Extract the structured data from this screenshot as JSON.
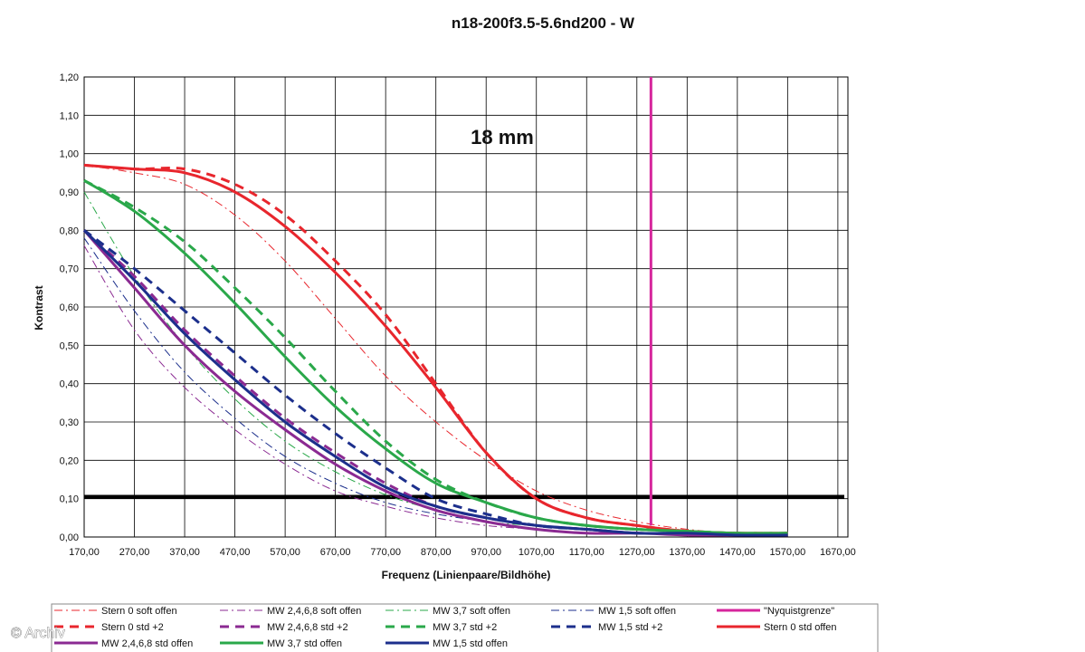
{
  "watermark": "© Archiv",
  "chart_data": {
    "type": "line",
    "title": "n18-200f3.5-5.6nd200 - W",
    "xlabel": "Frequenz (Linienpaare/Bildhöhe)",
    "ylabel": "Kontrast",
    "annotation": "18 mm",
    "xlim": [
      170,
      1690
    ],
    "ylim": [
      0,
      1.2
    ],
    "x_ticks": [
      "170,00",
      "270,00",
      "370,00",
      "470,00",
      "570,00",
      "670,00",
      "770,00",
      "870,00",
      "970,00",
      "1070,00",
      "1170,00",
      "1270,00",
      "1370,00",
      "1470,00",
      "1570,00",
      "1670,00"
    ],
    "y_ticks": [
      "0,00",
      "0,10",
      "0,20",
      "0,30",
      "0,40",
      "0,50",
      "0,60",
      "0,70",
      "0,80",
      "0,90",
      "1,00",
      "1,10",
      "1,20"
    ],
    "threshold": 0.105,
    "nyquist_x": 1298,
    "colors": {
      "red": "#e8262d",
      "purple": "#8b2a92",
      "green": "#2aa84a",
      "blue": "#1c2f8c",
      "magenta": "#d6269c",
      "black": "#000000"
    },
    "series": [
      {
        "name": "Stern 0 soft offen",
        "color": "red",
        "style": "dashdot",
        "width": 1,
        "x": [
          170,
          270,
          370,
          470,
          570,
          670,
          770,
          870,
          970,
          1070,
          1170,
          1270,
          1370,
          1470,
          1570
        ],
        "y": [
          0.97,
          0.95,
          0.92,
          0.84,
          0.72,
          0.57,
          0.42,
          0.3,
          0.2,
          0.12,
          0.07,
          0.04,
          0.02,
          0.01,
          0.01
        ]
      },
      {
        "name": "MW 2,4,6,8 soft offen",
        "color": "purple",
        "style": "dashdot",
        "width": 1,
        "x": [
          170,
          270,
          370,
          470,
          570,
          670,
          770,
          870,
          970,
          1070,
          1170,
          1270,
          1370,
          1470,
          1570
        ],
        "y": [
          0.76,
          0.54,
          0.39,
          0.28,
          0.19,
          0.12,
          0.08,
          0.05,
          0.03,
          0.02,
          0.01,
          0.01,
          0.005,
          0.005,
          0.005
        ]
      },
      {
        "name": "MW 3,7 soft offen",
        "color": "green",
        "style": "dashdot",
        "width": 1,
        "x": [
          170,
          270,
          370,
          470,
          570,
          670,
          770,
          870,
          970,
          1070,
          1170,
          1270,
          1370,
          1470,
          1570
        ],
        "y": [
          0.9,
          0.68,
          0.5,
          0.36,
          0.25,
          0.17,
          0.11,
          0.07,
          0.04,
          0.03,
          0.02,
          0.01,
          0.01,
          0.01,
          0.01
        ]
      },
      {
        "name": "MW 1,5 soft offen",
        "color": "blue",
        "style": "dashdot",
        "width": 1,
        "x": [
          170,
          270,
          370,
          470,
          570,
          670,
          770,
          870,
          970,
          1070,
          1170,
          1270,
          1370,
          1470,
          1570
        ],
        "y": [
          0.78,
          0.59,
          0.43,
          0.31,
          0.21,
          0.14,
          0.09,
          0.06,
          0.04,
          0.02,
          0.01,
          0.01,
          0.005,
          0.005,
          0.005
        ]
      },
      {
        "name": "\"Nyquistgrenze\"",
        "color": "magenta",
        "style": "vline",
        "width": 3
      },
      {
        "name": "Stern 0 std +2",
        "color": "red",
        "style": "dash",
        "width": 3,
        "x": [
          170,
          270,
          370,
          470,
          570,
          670,
          770,
          870,
          970,
          1070,
          1170,
          1270,
          1370,
          1470,
          1570
        ],
        "y": [
          0.97,
          0.96,
          0.96,
          0.92,
          0.84,
          0.72,
          0.58,
          0.4,
          0.22,
          0.1,
          0.05,
          0.03,
          0.015,
          0.01,
          0.01
        ]
      },
      {
        "name": "MW 2,4,6,8 std +2",
        "color": "purple",
        "style": "dash",
        "width": 3,
        "x": [
          170,
          270,
          370,
          470,
          570,
          670,
          770,
          870,
          970,
          1070,
          1170,
          1270,
          1370,
          1470,
          1570
        ],
        "y": [
          0.8,
          0.68,
          0.54,
          0.42,
          0.31,
          0.22,
          0.14,
          0.08,
          0.05,
          0.03,
          0.02,
          0.01,
          0.01,
          0.005,
          0.005
        ]
      },
      {
        "name": "MW 3,7 std +2",
        "color": "green",
        "style": "dash",
        "width": 3,
        "x": [
          170,
          270,
          370,
          470,
          570,
          670,
          770,
          870,
          970,
          1070,
          1170,
          1270,
          1370,
          1470,
          1570
        ],
        "y": [
          0.93,
          0.86,
          0.77,
          0.65,
          0.52,
          0.38,
          0.25,
          0.15,
          0.09,
          0.05,
          0.03,
          0.02,
          0.015,
          0.01,
          0.01
        ]
      },
      {
        "name": "MW 1,5 std +2",
        "color": "blue",
        "style": "dash",
        "width": 3,
        "x": [
          170,
          270,
          370,
          470,
          570,
          670,
          770,
          870,
          970,
          1070,
          1170,
          1270,
          1370,
          1470,
          1570
        ],
        "y": [
          0.8,
          0.7,
          0.59,
          0.48,
          0.37,
          0.27,
          0.18,
          0.1,
          0.06,
          0.03,
          0.02,
          0.01,
          0.01,
          0.005,
          0.005
        ]
      },
      {
        "name": "Stern 0 std offen",
        "color": "red",
        "style": "solid",
        "width": 3,
        "x": [
          170,
          270,
          370,
          470,
          570,
          670,
          770,
          870,
          970,
          1070,
          1170,
          1270,
          1370,
          1470,
          1570
        ],
        "y": [
          0.97,
          0.96,
          0.95,
          0.9,
          0.81,
          0.69,
          0.55,
          0.39,
          0.22,
          0.1,
          0.05,
          0.03,
          0.015,
          0.01,
          0.01
        ]
      },
      {
        "name": "MW 2,4,6,8 std offen",
        "color": "purple",
        "style": "solid",
        "width": 3,
        "x": [
          170,
          270,
          370,
          470,
          570,
          670,
          770,
          870,
          970,
          1070,
          1170,
          1270,
          1370,
          1470,
          1570
        ],
        "y": [
          0.8,
          0.65,
          0.5,
          0.38,
          0.28,
          0.19,
          0.12,
          0.07,
          0.04,
          0.02,
          0.01,
          0.01,
          0.005,
          0.005,
          0.005
        ]
      },
      {
        "name": "MW 3,7 std offen",
        "color": "green",
        "style": "solid",
        "width": 3,
        "x": [
          170,
          270,
          370,
          470,
          570,
          670,
          770,
          870,
          970,
          1070,
          1170,
          1270,
          1370,
          1470,
          1570
        ],
        "y": [
          0.93,
          0.85,
          0.74,
          0.61,
          0.47,
          0.34,
          0.23,
          0.14,
          0.09,
          0.05,
          0.03,
          0.02,
          0.015,
          0.01,
          0.01
        ]
      },
      {
        "name": "MW 1,5 std offen",
        "color": "blue",
        "style": "solid",
        "width": 3,
        "x": [
          170,
          270,
          370,
          470,
          570,
          670,
          770,
          870,
          970,
          1070,
          1170,
          1270,
          1370,
          1470,
          1570
        ],
        "y": [
          0.8,
          0.67,
          0.53,
          0.41,
          0.3,
          0.21,
          0.13,
          0.08,
          0.05,
          0.03,
          0.02,
          0.01,
          0.01,
          0.005,
          0.005
        ]
      }
    ],
    "legend_rows": [
      [
        0,
        1,
        2,
        3,
        4
      ],
      [
        5,
        6,
        7,
        8,
        9
      ],
      [
        10,
        11,
        12
      ]
    ]
  }
}
